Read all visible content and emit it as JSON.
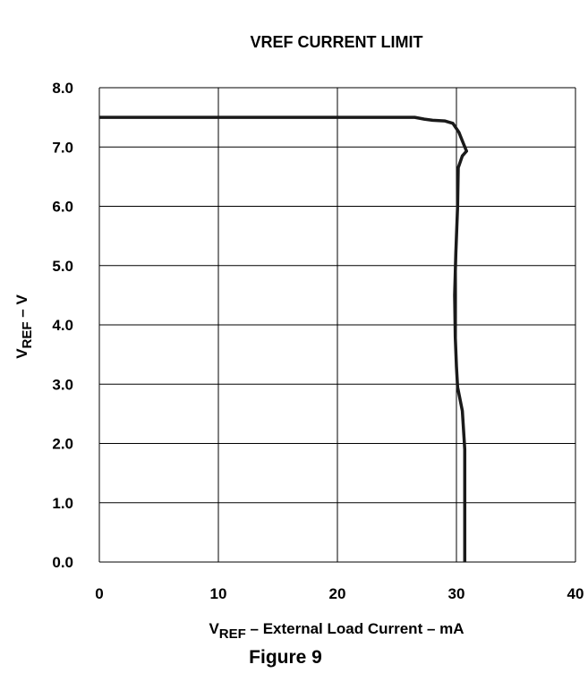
{
  "figure_label": "Figure 9",
  "chart_data": {
    "type": "line",
    "title": "VREF CURRENT LIMIT",
    "xlabel": {
      "main": "V",
      "subscript": "REF",
      "rest": " – External Load Current – mA"
    },
    "ylabel": {
      "main": "V",
      "subscript": "REF",
      "rest": " – V"
    },
    "xlim": [
      0,
      40
    ],
    "ylim": [
      0,
      8
    ],
    "x_ticks": [
      "0",
      "10",
      "20",
      "30",
      "40"
    ],
    "y_ticks": [
      "0.0",
      "1.0",
      "2.0",
      "3.0",
      "4.0",
      "5.0",
      "6.0",
      "7.0",
      "8.0"
    ],
    "grid": true,
    "series": [
      {
        "color": "#1a1a1a",
        "points": [
          [
            0.0,
            7.5
          ],
          [
            26.5,
            7.5
          ],
          [
            27.3,
            7.47
          ],
          [
            28.0,
            7.45
          ],
          [
            29.0,
            7.44
          ],
          [
            29.7,
            7.4
          ],
          [
            30.2,
            7.25
          ],
          [
            30.6,
            7.05
          ],
          [
            30.85,
            6.93
          ],
          [
            30.5,
            6.85
          ],
          [
            30.15,
            6.65
          ],
          [
            30.1,
            6.0
          ],
          [
            29.95,
            5.2
          ],
          [
            29.85,
            4.5
          ],
          [
            29.9,
            3.8
          ],
          [
            30.0,
            3.3
          ],
          [
            30.1,
            2.95
          ],
          [
            30.5,
            2.55
          ],
          [
            30.7,
            1.9
          ],
          [
            30.7,
            1.0
          ],
          [
            30.7,
            0.0
          ]
        ]
      }
    ]
  }
}
